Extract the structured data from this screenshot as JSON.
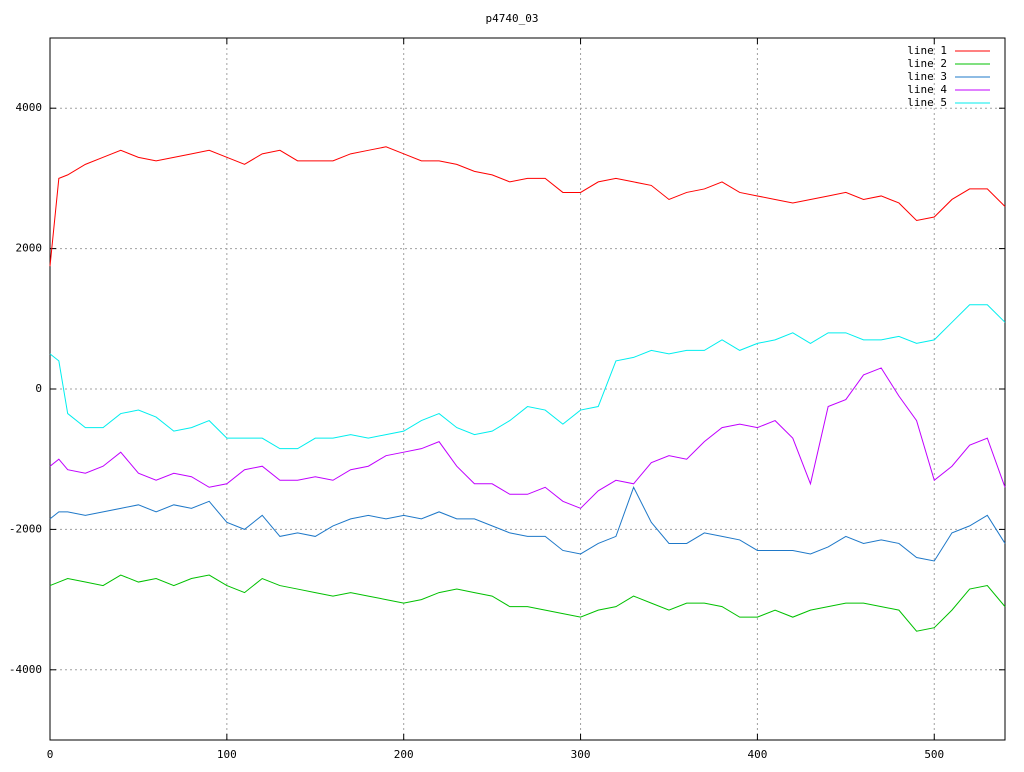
{
  "chart_data": {
    "type": "line",
    "title": "p4740_03",
    "x": [
      0,
      5,
      10,
      20,
      30,
      40,
      50,
      60,
      70,
      80,
      90,
      100,
      110,
      120,
      130,
      140,
      150,
      160,
      170,
      180,
      190,
      200,
      210,
      220,
      230,
      240,
      250,
      260,
      270,
      280,
      290,
      300,
      310,
      320,
      330,
      340,
      350,
      360,
      370,
      380,
      390,
      400,
      410,
      420,
      430,
      440,
      450,
      460,
      470,
      480,
      490,
      500,
      510,
      520,
      530,
      540
    ],
    "series": [
      {
        "name": "line 1",
        "color": "#ff0000",
        "values": [
          1750,
          3000,
          3050,
          3200,
          3300,
          3400,
          3300,
          3250,
          3300,
          3350,
          3400,
          3300,
          3200,
          3350,
          3400,
          3250,
          3250,
          3250,
          3350,
          3400,
          3450,
          3350,
          3250,
          3250,
          3200,
          3100,
          3050,
          2950,
          3000,
          3000,
          2800,
          2800,
          2950,
          3000,
          2950,
          2900,
          2700,
          2800,
          2850,
          2950,
          2800,
          2750,
          2700,
          2650,
          2700,
          2750,
          2800,
          2700,
          2750,
          2650,
          2400,
          2450,
          2700,
          2850,
          2850,
          2600
        ]
      },
      {
        "name": "line 2",
        "color": "#00c000",
        "values": [
          -2800,
          -2750,
          -2700,
          -2750,
          -2800,
          -2650,
          -2750,
          -2700,
          -2800,
          -2700,
          -2650,
          -2800,
          -2900,
          -2700,
          -2800,
          -2850,
          -2900,
          -2950,
          -2900,
          -2950,
          -3000,
          -3050,
          -3000,
          -2900,
          -2850,
          -2900,
          -2950,
          -3100,
          -3100,
          -3150,
          -3200,
          -3250,
          -3150,
          -3100,
          -2950,
          -3050,
          -3150,
          -3050,
          -3050,
          -3100,
          -3250,
          -3250,
          -3150,
          -3250,
          -3150,
          -3100,
          -3050,
          -3050,
          -3100,
          -3150,
          -3450,
          -3400,
          -3150,
          -2850,
          -2800,
          -3100
        ]
      },
      {
        "name": "line 3",
        "color": "#1e78c8",
        "values": [
          -1850,
          -1750,
          -1750,
          -1800,
          -1750,
          -1700,
          -1650,
          -1750,
          -1650,
          -1700,
          -1600,
          -1900,
          -2000,
          -1800,
          -2100,
          -2050,
          -2100,
          -1950,
          -1850,
          -1800,
          -1850,
          -1800,
          -1850,
          -1750,
          -1850,
          -1850,
          -1950,
          -2050,
          -2100,
          -2100,
          -2300,
          -2350,
          -2200,
          -2100,
          -1400,
          -1900,
          -2200,
          -2200,
          -2050,
          -2100,
          -2150,
          -2300,
          -2300,
          -2300,
          -2350,
          -2250,
          -2100,
          -2200,
          -2150,
          -2200,
          -2400,
          -2450,
          -2050,
          -1950,
          -1800,
          -2200
        ]
      },
      {
        "name": "line 4",
        "color": "#c000ff",
        "values": [
          -1100,
          -1000,
          -1150,
          -1200,
          -1100,
          -900,
          -1200,
          -1300,
          -1200,
          -1250,
          -1400,
          -1350,
          -1150,
          -1100,
          -1300,
          -1300,
          -1250,
          -1300,
          -1150,
          -1100,
          -950,
          -900,
          -850,
          -750,
          -1100,
          -1350,
          -1350,
          -1500,
          -1500,
          -1400,
          -1600,
          -1700,
          -1450,
          -1300,
          -1350,
          -1050,
          -950,
          -1000,
          -750,
          -550,
          -500,
          -550,
          -450,
          -700,
          -1350,
          -250,
          -150,
          200,
          300,
          -100,
          -450,
          -1300,
          -1100,
          -800,
          -700,
          -1400
        ]
      },
      {
        "name": "line 5",
        "color": "#00eeee",
        "values": [
          500,
          400,
          -350,
          -550,
          -550,
          -350,
          -300,
          -400,
          -600,
          -550,
          -450,
          -700,
          -700,
          -700,
          -850,
          -850,
          -700,
          -700,
          -650,
          -700,
          -650,
          -600,
          -450,
          -350,
          -550,
          -650,
          -600,
          -450,
          -250,
          -300,
          -500,
          -300,
          -250,
          400,
          450,
          550,
          500,
          550,
          550,
          700,
          550,
          650,
          700,
          800,
          650,
          800,
          800,
          700,
          700,
          750,
          650,
          700,
          950,
          1200,
          1200,
          950
        ]
      }
    ],
    "xlim": [
      0,
      540
    ],
    "xticks": [
      0,
      100,
      200,
      300,
      400,
      500
    ],
    "ylim": [
      -5000,
      5000
    ],
    "yticks": [
      -4000,
      -2000,
      0,
      2000,
      4000
    ],
    "grid": true,
    "legend": "top-right"
  }
}
